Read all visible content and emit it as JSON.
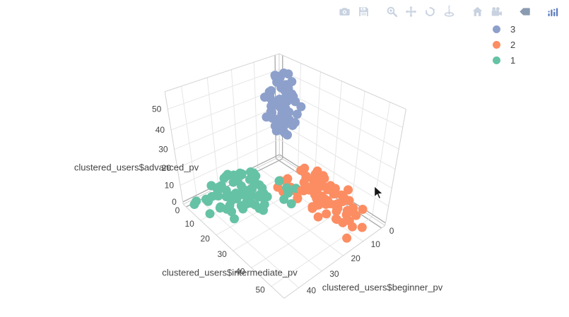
{
  "chart_data": {
    "type": "scatter3d",
    "title": "",
    "background": "#ffffff",
    "grid_color": "#e6e6e6",
    "zeroline_color": "#a8a8a8",
    "edge_color": "#d2d2d2",
    "tick_color": "#444444",
    "legend_position": "top-right",
    "axes": {
      "x": {
        "title": "clustered_users$beginner_pv",
        "ticks": [
          0,
          10,
          20,
          30,
          40
        ],
        "range": [
          -2,
          46
        ]
      },
      "y": {
        "title": "clustered_users$intermediate_pv",
        "ticks": [
          0,
          10,
          20,
          30,
          40,
          50
        ],
        "range": [
          -2,
          56
        ]
      },
      "z": {
        "title": "clustered_users$advanced_pv",
        "ticks": [
          0,
          10,
          20,
          30,
          40,
          50
        ],
        "range": [
          -1.5,
          58
        ]
      }
    },
    "series": [
      {
        "name": "3",
        "color": "#8da0cb",
        "points": [
          [
            6,
            8,
            42
          ],
          [
            9,
            11,
            45
          ],
          [
            4,
            6,
            48
          ],
          [
            11,
            9,
            38
          ],
          [
            7,
            13,
            51
          ],
          [
            5,
            10,
            35
          ],
          [
            10,
            7,
            44
          ],
          [
            8,
            15,
            40
          ],
          [
            3,
            9,
            47
          ],
          [
            12,
            12,
            33
          ],
          [
            6,
            5,
            53
          ],
          [
            9,
            14,
            37
          ],
          [
            5,
            8,
            49
          ],
          [
            11,
            11,
            43
          ],
          [
            7,
            6,
            31
          ],
          [
            4,
            12,
            46
          ],
          [
            10,
            16,
            39
          ],
          [
            8,
            9,
            55
          ],
          [
            6,
            13,
            34
          ],
          [
            3,
            7,
            41
          ],
          [
            12,
            10,
            50
          ],
          [
            5,
            15,
            44
          ],
          [
            9,
            6,
            36
          ],
          [
            7,
            11,
            57
          ],
          [
            4,
            14,
            32
          ],
          [
            11,
            8,
            47
          ],
          [
            6,
            10,
            29
          ],
          [
            10,
            13,
            52
          ],
          [
            8,
            5,
            38
          ],
          [
            5,
            12,
            45
          ],
          [
            3,
            16,
            41
          ],
          [
            12,
            7,
            35
          ],
          [
            7,
            9,
            54
          ],
          [
            9,
            15,
            48
          ],
          [
            4,
            11,
            30
          ],
          [
            11,
            14,
            43
          ],
          [
            6,
            6,
            50
          ],
          [
            8,
            12,
            28
          ],
          [
            5,
            9,
            39
          ],
          [
            10,
            10,
            56
          ],
          [
            7,
            16,
            33
          ],
          [
            4,
            8,
            46
          ],
          [
            12,
            13,
            37
          ],
          [
            6,
            11,
            51
          ],
          [
            9,
            7,
            42
          ],
          [
            3,
            14,
            36
          ],
          [
            11,
            5,
            44
          ],
          [
            8,
            10,
            31
          ],
          [
            5,
            13,
            53
          ],
          [
            7,
            12,
            40
          ],
          [
            10,
            8,
            34
          ],
          [
            6,
            15,
            47
          ],
          [
            4,
            10,
            55
          ],
          [
            9,
            12,
            32
          ],
          [
            12,
            9,
            49
          ],
          [
            8,
            14,
            45
          ],
          [
            5,
            7,
            38
          ],
          [
            3,
            11,
            43
          ],
          [
            10,
            15,
            30
          ],
          [
            7,
            10,
            36
          ],
          [
            8,
            8,
            26
          ],
          [
            6,
            12,
            25
          ]
        ]
      },
      {
        "name": "2",
        "color": "#fc8d62",
        "points": [
          [
            3,
            20,
            4
          ],
          [
            7,
            24,
            2
          ],
          [
            11,
            18,
            6
          ],
          [
            5,
            28,
            8
          ],
          [
            9,
            32,
            3
          ],
          [
            2,
            25,
            10
          ],
          [
            13,
            22,
            5
          ],
          [
            6,
            35,
            2
          ],
          [
            10,
            27,
            7
          ],
          [
            4,
            30,
            12
          ],
          [
            8,
            38,
            4
          ],
          [
            12,
            33,
            1
          ],
          [
            1,
            23,
            6
          ],
          [
            14,
            29,
            9
          ],
          [
            7,
            41,
            3
          ],
          [
            3,
            36,
            5
          ],
          [
            11,
            44,
            2
          ],
          [
            5,
            19,
            8
          ],
          [
            9,
            26,
            11
          ],
          [
            13,
            37,
            6
          ],
          [
            2,
            31,
            3
          ],
          [
            6,
            42,
            7
          ],
          [
            10,
            21,
            1
          ],
          [
            4,
            34,
            9
          ],
          [
            8,
            46,
            4
          ],
          [
            12,
            25,
            5
          ],
          [
            15,
            39,
            2
          ],
          [
            1,
            28,
            7
          ],
          [
            7,
            33,
            10
          ],
          [
            3,
            45,
            1
          ],
          [
            11,
            30,
            8
          ],
          [
            5,
            48,
            3
          ],
          [
            9,
            36,
            6
          ],
          [
            13,
            41,
            4
          ],
          [
            2,
            27,
            2
          ],
          [
            6,
            22,
            12
          ],
          [
            10,
            43,
            5
          ],
          [
            4,
            38,
            1
          ],
          [
            8,
            31,
            7
          ],
          [
            14,
            35,
            3
          ],
          [
            1,
            40,
            9
          ],
          [
            7,
            26,
            4
          ],
          [
            3,
            49,
            6
          ],
          [
            11,
            34,
            2
          ],
          [
            5,
            29,
            5
          ],
          [
            9,
            47,
            8
          ],
          [
            12,
            23,
            3
          ],
          [
            6,
            37,
            11
          ],
          [
            10,
            32,
            6
          ],
          [
            2,
            44,
            2
          ],
          [
            15,
            28,
            4
          ],
          [
            4,
            41,
            7
          ],
          [
            8,
            24,
            1
          ],
          [
            13,
            46,
            5
          ],
          [
            1,
            33,
            3
          ],
          [
            7,
            39,
            13
          ],
          [
            5,
            21,
            2
          ],
          [
            9,
            30,
            9
          ],
          [
            3,
            35,
            4
          ],
          [
            11,
            50,
            6
          ],
          [
            6,
            45,
            10
          ],
          [
            14,
            27,
            3
          ],
          [
            2,
            38,
            5
          ],
          [
            10,
            42,
            8
          ],
          [
            4,
            25,
            6
          ],
          [
            8,
            36,
            2
          ],
          [
            12,
            48,
            4
          ],
          [
            5,
            31,
            1
          ],
          [
            6,
            52,
            0
          ],
          [
            9,
            50,
            1
          ],
          [
            14,
            52,
            0
          ],
          [
            16,
            18,
            4
          ],
          [
            15,
            20,
            2
          ],
          [
            14,
            17,
            6
          ],
          [
            12,
            19,
            3
          ]
        ]
      },
      {
        "name": "1",
        "color": "#66c2a5",
        "points": [
          [
            31,
            2,
            3
          ],
          [
            35,
            4,
            1
          ],
          [
            28,
            1,
            6
          ],
          [
            24,
            3,
            2
          ],
          [
            38,
            6,
            4
          ],
          [
            33,
            8,
            2
          ],
          [
            27,
            5,
            9
          ],
          [
            22,
            2,
            5
          ],
          [
            30,
            11,
            3
          ],
          [
            36,
            3,
            7
          ],
          [
            25,
            8,
            1
          ],
          [
            29,
            14,
            5
          ],
          [
            34,
            10,
            8
          ],
          [
            40,
            5,
            3
          ],
          [
            26,
            12,
            2
          ],
          [
            21,
            7,
            4
          ],
          [
            32,
            6,
            11
          ],
          [
            37,
            9,
            6
          ],
          [
            23,
            13,
            8
          ],
          [
            28,
            16,
            3
          ],
          [
            31,
            18,
            5
          ],
          [
            35,
            13,
            2
          ],
          [
            27,
            20,
            7
          ],
          [
            24,
            17,
            4
          ],
          [
            30,
            22,
            6
          ],
          [
            33,
            15,
            9
          ],
          [
            38,
            11,
            1
          ],
          [
            22,
            19,
            3
          ],
          [
            26,
            9,
            12
          ],
          [
            29,
            4,
            10
          ],
          [
            41,
            8,
            5
          ],
          [
            36,
            16,
            8
          ],
          [
            25,
            21,
            2
          ],
          [
            32,
            12,
            13
          ],
          [
            28,
            7,
            0
          ],
          [
            34,
            19,
            6
          ],
          [
            23,
            10,
            1
          ],
          [
            30,
            14,
            11
          ],
          [
            37,
            17,
            3
          ],
          [
            26,
            15,
            7
          ],
          [
            21,
            11,
            9
          ],
          [
            39,
            13,
            4
          ],
          [
            33,
            21,
            8
          ],
          [
            27,
            12,
            5
          ],
          [
            31,
            9,
            2
          ],
          [
            24,
            6,
            8
          ],
          [
            35,
            18,
            10
          ],
          [
            29,
            23,
            4
          ],
          [
            22,
            16,
            6
          ],
          [
            38,
            20,
            2
          ],
          [
            42,
            10,
            7
          ],
          [
            20,
            8,
            3
          ],
          [
            25,
            14,
            12
          ],
          [
            30,
            19,
            9
          ],
          [
            34,
            5,
            5
          ],
          [
            28,
            24,
            3
          ],
          [
            32,
            17,
            1
          ],
          [
            26,
            22,
            10
          ],
          [
            36,
            7,
            8
          ],
          [
            23,
            18,
            2
          ],
          [
            40,
            15,
            6
          ],
          [
            21,
            13,
            5
          ],
          [
            29,
            10,
            13
          ],
          [
            33,
            3,
            4
          ],
          [
            27,
            16,
            9
          ],
          [
            31,
            21,
            7
          ],
          [
            24,
            12,
            0
          ],
          [
            37,
            14,
            2
          ],
          [
            19,
            5,
            6
          ],
          [
            16,
            3,
            2
          ],
          [
            44,
            3,
            1
          ],
          [
            42,
            1,
            0
          ],
          [
            43,
            12,
            2
          ],
          [
            16,
            24,
            5
          ],
          [
            14,
            26,
            8
          ],
          [
            18,
            28,
            3
          ],
          [
            15,
            22,
            6
          ],
          [
            17,
            20,
            10
          ],
          [
            19,
            25,
            4
          ]
        ]
      }
    ]
  },
  "modebar": {
    "icon_color": "#c8d2e0",
    "active_color": "#8a9bb1",
    "brand_color": "#5e7cc0",
    "buttons": [
      {
        "name": "snapshot-camera-button",
        "icon": "camera",
        "group_start": false
      },
      {
        "name": "save-button",
        "icon": "save",
        "group_start": false
      },
      {
        "name": "zoom-3d-button",
        "icon": "zoom",
        "group_start": true
      },
      {
        "name": "pan-3d-button",
        "icon": "pan",
        "group_start": false
      },
      {
        "name": "orbit-rotation-button",
        "icon": "orbit",
        "group_start": false
      },
      {
        "name": "turntable-rotation-button",
        "icon": "turntable",
        "group_start": false
      },
      {
        "name": "reset-camera-home-button",
        "icon": "home",
        "group_start": true
      },
      {
        "name": "reset-camera-last-save-button",
        "icon": "movie-camera",
        "group_start": false
      },
      {
        "name": "toggle-hover-closest-button",
        "icon": "hover-tag",
        "group_start": true,
        "active": true
      },
      {
        "name": "plotly-logo-link",
        "icon": "plotly-logo",
        "group_start": true,
        "brand": true
      }
    ]
  }
}
